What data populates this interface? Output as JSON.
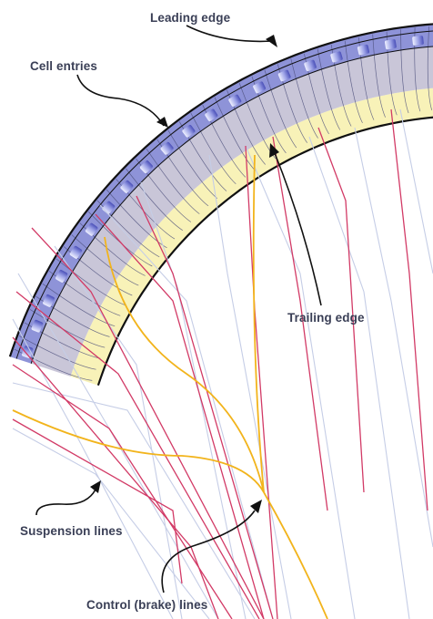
{
  "labels": {
    "leading_edge": "Leading edge",
    "cell_entries": "Cell entries",
    "trailing_edge": "Trailing edge",
    "suspension_lines": "Suspension lines",
    "control_lines": "Control (brake) lines"
  },
  "colors": {
    "background": "#ffffff",
    "canopy_top": "#8e93d8",
    "canopy_mid": "#c9c6d8",
    "canopy_bottom": "#f8f2b8",
    "canopy_outline": "#111111",
    "cell_highlight": "#eef0ff",
    "cell_shadow": "#4a4fb8",
    "suspension_line": "#c5cde6",
    "suspension_line_front": "#d23a66",
    "control_line": "#f2b41c",
    "pointer": "#111111",
    "label_text": "#3a3f56"
  }
}
